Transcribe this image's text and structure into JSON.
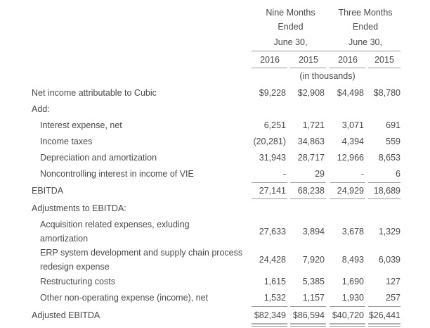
{
  "headers": {
    "nine_months_line1": "Nine Months",
    "nine_months_line2": "Ended",
    "nine_months_date": "June 30,",
    "three_months_line1": "Three Months",
    "three_months_line2": "Ended",
    "three_months_date": "June 30,",
    "years": [
      "2016",
      "2015",
      "2016",
      "2015"
    ],
    "units": "(in thousands)"
  },
  "rows": [
    {
      "label": "Net income attributable to Cubic",
      "values": [
        "$9,228",
        "$2,908",
        "$4,498",
        "$8,780"
      ]
    },
    {
      "label": "Add:",
      "values": [
        "",
        "",
        "",
        ""
      ]
    },
    {
      "label": "Interest expense, net",
      "values": [
        "6,251",
        "1,721",
        "3,071",
        "691"
      ]
    },
    {
      "label": "Income taxes",
      "values": [
        "(20,281)",
        "34,863",
        "4,394",
        "559"
      ]
    },
    {
      "label": "Depreciation and amortization",
      "values": [
        "31,943",
        "28,717",
        "12,966",
        "8,653"
      ]
    },
    {
      "label": "Noncontrolling interest in income of VIE",
      "values": [
        "-",
        "29",
        "-",
        "6"
      ]
    },
    {
      "label": "EBITDA",
      "values": [
        "27,141",
        "68,238",
        "24,929",
        "18,689"
      ]
    },
    {
      "label": "Adjustments to EBITDA:",
      "values": [
        "",
        "",
        "",
        ""
      ]
    },
    {
      "label_line1": "Acquisition related expenses, exluding",
      "label_line2": "amortization",
      "values": [
        "27,633",
        "3,894",
        "3,678",
        "1,329"
      ]
    },
    {
      "label_line1": "ERP system development and supply chain process",
      "label_line2": "redesign expense",
      "values": [
        "24,428",
        "7,920",
        "8,493",
        "6,039"
      ]
    },
    {
      "label": "Restructuring costs",
      "values": [
        "1,615",
        "5,385",
        "1,690",
        "127"
      ]
    },
    {
      "label": "Other non-operating expense (income), net",
      "values": [
        "1,532",
        "1,157",
        "1,930",
        "257"
      ]
    },
    {
      "label": "Adjusted EBITDA",
      "values": [
        "$82,349",
        "$86,594",
        "$40,720",
        "$26,441"
      ]
    }
  ]
}
